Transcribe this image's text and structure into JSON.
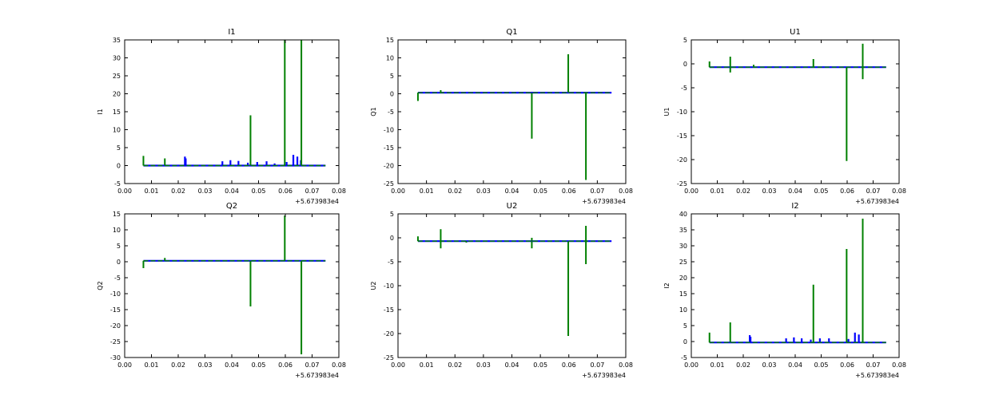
{
  "figure": {
    "background": "#ffffff"
  },
  "chart_data": [
    {
      "type": "line",
      "title": "I1",
      "ylabel": "I1",
      "xlabel": "",
      "x_offset_label": "+5.673983e4",
      "xlim": [
        0.0,
        0.08
      ],
      "ylim": [
        -5,
        35
      ],
      "xticks": [
        "0.00",
        "0.01",
        "0.02",
        "0.03",
        "0.04",
        "0.05",
        "0.06",
        "0.07",
        "0.08"
      ],
      "yticks": [
        "-5",
        "0",
        "5",
        "10",
        "15",
        "20",
        "25",
        "30",
        "35"
      ],
      "grid": false,
      "series": [
        {
          "color": "#0000ff",
          "baseline": 0,
          "spikes": [
            [
              0.0225,
              2.5
            ],
            [
              0.0228,
              2.0
            ],
            [
              0.0365,
              1.2
            ],
            [
              0.0395,
              1.5
            ],
            [
              0.0425,
              1.3
            ],
            [
              0.046,
              0.8
            ],
            [
              0.0495,
              1.0
            ],
            [
              0.053,
              1.2
            ],
            [
              0.056,
              0.6
            ],
            [
              0.0605,
              1.0
            ],
            [
              0.063,
              3.0
            ],
            [
              0.0645,
              2.5
            ],
            [
              0.0658,
              1.5
            ]
          ]
        },
        {
          "color": "#008000",
          "baseline": 0,
          "spikes": [
            [
              0.007,
              2.7
            ],
            [
              0.015,
              2.0
            ],
            [
              0.047,
              14.0
            ],
            [
              0.0598,
              35.0
            ],
            [
              0.066,
              35.0
            ]
          ]
        }
      ]
    },
    {
      "type": "line",
      "title": "Q1",
      "ylabel": "Q1",
      "xlabel": "",
      "x_offset_label": "+5.673983e4",
      "xlim": [
        0.0,
        0.08
      ],
      "ylim": [
        -25,
        15
      ],
      "xticks": [
        "0.00",
        "0.01",
        "0.02",
        "0.03",
        "0.04",
        "0.05",
        "0.06",
        "0.07",
        "0.08"
      ],
      "yticks": [
        "-25",
        "-20",
        "-15",
        "-10",
        "-5",
        "0",
        "5",
        "10",
        "15"
      ],
      "grid": false,
      "series": [
        {
          "color": "#0000ff",
          "baseline": 0.3,
          "spikes": []
        },
        {
          "color": "#008000",
          "baseline": 0.3,
          "spikes": [
            [
              0.007,
              -2.0
            ],
            [
              0.015,
              1.0
            ],
            [
              0.047,
              -12.5
            ],
            [
              0.0598,
              11.0
            ],
            [
              0.066,
              -24.0
            ]
          ]
        }
      ]
    },
    {
      "type": "line",
      "title": "U1",
      "ylabel": "U1",
      "xlabel": "",
      "x_offset_label": "+5.673983e4",
      "xlim": [
        0.0,
        0.08
      ],
      "ylim": [
        -25,
        5
      ],
      "xticks": [
        "0.00",
        "0.01",
        "0.02",
        "0.03",
        "0.04",
        "0.05",
        "0.06",
        "0.07",
        "0.08"
      ],
      "yticks": [
        "-25",
        "-20",
        "-15",
        "-10",
        "-5",
        "0",
        "5"
      ],
      "grid": false,
      "series": [
        {
          "color": "#0000ff",
          "baseline": -0.7,
          "spikes": []
        },
        {
          "color": "#008000",
          "baseline": -0.7,
          "spikes": [
            [
              0.007,
              0.5
            ],
            [
              0.015,
              1.5
            ],
            [
              0.015,
              -1.8
            ],
            [
              0.024,
              -0.2
            ],
            [
              0.047,
              1.0
            ],
            [
              0.0598,
              -20.3
            ],
            [
              0.066,
              4.2
            ],
            [
              0.066,
              -3.2
            ]
          ]
        }
      ]
    },
    {
      "type": "line",
      "title": "Q2",
      "ylabel": "Q2",
      "xlabel": "",
      "x_offset_label": "+5.673983e4",
      "xlim": [
        0.0,
        0.08
      ],
      "ylim": [
        -30,
        15
      ],
      "xticks": [
        "0.00",
        "0.01",
        "0.02",
        "0.03",
        "0.04",
        "0.05",
        "0.06",
        "0.07",
        "0.08"
      ],
      "yticks": [
        "-30",
        "-25",
        "-20",
        "-15",
        "-10",
        "-5",
        "0",
        "5",
        "10",
        "15"
      ],
      "grid": false,
      "series": [
        {
          "color": "#0000ff",
          "baseline": 0.3,
          "spikes": []
        },
        {
          "color": "#008000",
          "baseline": 0.3,
          "spikes": [
            [
              0.007,
              -2.0
            ],
            [
              0.015,
              1.2
            ],
            [
              0.047,
              -14.0
            ],
            [
              0.0598,
              14.5
            ],
            [
              0.066,
              -29.0
            ]
          ]
        }
      ]
    },
    {
      "type": "line",
      "title": "U2",
      "ylabel": "U2",
      "xlabel": "",
      "x_offset_label": "+5.673983e4",
      "xlim": [
        0.0,
        0.08
      ],
      "ylim": [
        -25,
        5
      ],
      "xticks": [
        "0.00",
        "0.01",
        "0.02",
        "0.03",
        "0.04",
        "0.05",
        "0.06",
        "0.07",
        "0.08"
      ],
      "yticks": [
        "-25",
        "-20",
        "-15",
        "-10",
        "-5",
        "0",
        "5"
      ],
      "grid": false,
      "series": [
        {
          "color": "#0000ff",
          "baseline": -0.7,
          "spikes": []
        },
        {
          "color": "#008000",
          "baseline": -0.7,
          "spikes": [
            [
              0.007,
              0.3
            ],
            [
              0.015,
              1.8
            ],
            [
              0.015,
              -2.2
            ],
            [
              0.024,
              -1.0
            ],
            [
              0.047,
              -2.2
            ],
            [
              0.047,
              0.0
            ],
            [
              0.0598,
              -20.5
            ],
            [
              0.066,
              2.5
            ],
            [
              0.066,
              -5.5
            ]
          ]
        }
      ]
    },
    {
      "type": "line",
      "title": "I2",
      "ylabel": "I2",
      "xlabel": "",
      "x_offset_label": "+5.673983e4",
      "xlim": [
        0.0,
        0.08
      ],
      "ylim": [
        -5,
        40
      ],
      "xticks": [
        "0.00",
        "0.01",
        "0.02",
        "0.03",
        "0.04",
        "0.05",
        "0.06",
        "0.07",
        "0.08"
      ],
      "yticks": [
        "-5",
        "0",
        "5",
        "10",
        "15",
        "20",
        "25",
        "30",
        "35",
        "40"
      ],
      "grid": false,
      "series": [
        {
          "color": "#0000ff",
          "baseline": -0.3,
          "spikes": [
            [
              0.0225,
              2.0
            ],
            [
              0.0228,
              1.5
            ],
            [
              0.0365,
              1.0
            ],
            [
              0.0395,
              1.3
            ],
            [
              0.0425,
              1.0
            ],
            [
              0.046,
              0.6
            ],
            [
              0.0495,
              1.0
            ],
            [
              0.053,
              1.0
            ],
            [
              0.0605,
              0.8
            ],
            [
              0.063,
              2.8
            ],
            [
              0.0645,
              2.2
            ]
          ]
        },
        {
          "color": "#008000",
          "baseline": -0.3,
          "spikes": [
            [
              0.007,
              2.8
            ],
            [
              0.015,
              6.0
            ],
            [
              0.047,
              17.8
            ],
            [
              0.0598,
              29.0
            ],
            [
              0.066,
              38.5
            ]
          ]
        }
      ]
    }
  ]
}
